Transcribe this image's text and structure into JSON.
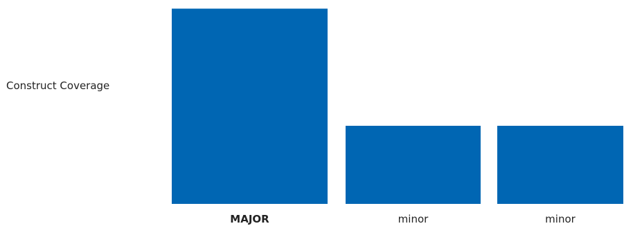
{
  "chart_data": {
    "type": "bar",
    "ylabel": "Construct Coverage",
    "categories": [
      "MAJOR",
      "minor",
      "minor"
    ],
    "values": [
      2.5,
      1,
      1
    ],
    "emphasis": [
      true,
      false,
      false
    ],
    "bar_color": "#0066b3"
  }
}
